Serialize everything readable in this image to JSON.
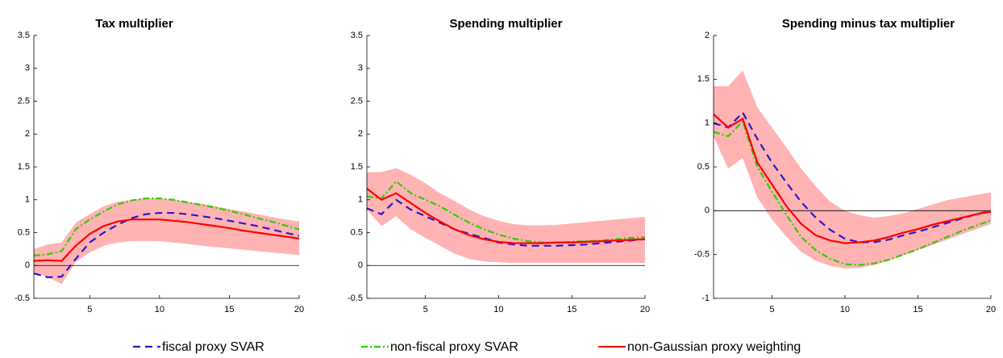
{
  "chart_data": [
    {
      "type": "line",
      "title": "Tax multiplier",
      "x": [
        1,
        2,
        3,
        4,
        5,
        6,
        7,
        8,
        9,
        10,
        11,
        12,
        13,
        14,
        15,
        16,
        17,
        18,
        19,
        20
      ],
      "xlim": [
        1,
        20
      ],
      "xticks": [
        5,
        10,
        15,
        20
      ],
      "ylim": [
        -0.5,
        3.5
      ],
      "yticks": [
        -0.5,
        0,
        0.5,
        1,
        1.5,
        2,
        2.5,
        3,
        3.5
      ],
      "reference_line": 0,
      "band": {
        "color": "#ffb3b3",
        "lower": [
          -0.1,
          -0.18,
          -0.28,
          0.05,
          0.2,
          0.3,
          0.35,
          0.37,
          0.37,
          0.37,
          0.35,
          0.33,
          0.3,
          0.28,
          0.26,
          0.24,
          0.22,
          0.2,
          0.18,
          0.16
        ],
        "upper": [
          0.25,
          0.32,
          0.35,
          0.65,
          0.78,
          0.9,
          0.97,
          1.0,
          1.02,
          1.02,
          1.0,
          0.97,
          0.94,
          0.9,
          0.86,
          0.82,
          0.78,
          0.74,
          0.7,
          0.67
        ]
      },
      "series": [
        {
          "name": "fiscal proxy SVAR",
          "color": "#2b19c8",
          "dash": "dashed",
          "values": [
            -0.12,
            -0.18,
            -0.17,
            0.1,
            0.35,
            0.5,
            0.62,
            0.72,
            0.78,
            0.8,
            0.8,
            0.78,
            0.75,
            0.72,
            0.68,
            0.64,
            0.6,
            0.55,
            0.5,
            0.45
          ]
        },
        {
          "name": "non-fiscal proxy SVAR",
          "color": "#33cc00",
          "dash": "dashdot",
          "values": [
            0.15,
            0.17,
            0.22,
            0.55,
            0.7,
            0.82,
            0.93,
            0.99,
            1.02,
            1.02,
            1.0,
            0.96,
            0.92,
            0.88,
            0.83,
            0.78,
            0.72,
            0.67,
            0.61,
            0.55
          ]
        },
        {
          "name": "non-Gaussian proxy weighting",
          "color": "#ff0000",
          "dash": "solid",
          "values": [
            0.07,
            0.08,
            0.07,
            0.3,
            0.48,
            0.6,
            0.67,
            0.7,
            0.7,
            0.7,
            0.68,
            0.66,
            0.63,
            0.6,
            0.57,
            0.53,
            0.5,
            0.47,
            0.44,
            0.41
          ]
        }
      ]
    },
    {
      "type": "line",
      "title": "Spending multiplier",
      "x": [
        1,
        2,
        3,
        4,
        5,
        6,
        7,
        8,
        9,
        10,
        11,
        12,
        13,
        14,
        15,
        16,
        17,
        18,
        19,
        20
      ],
      "xlim": [
        1,
        20
      ],
      "xticks": [
        5,
        10,
        15,
        20
      ],
      "ylim": [
        -0.5,
        3.5
      ],
      "yticks": [
        -0.5,
        0,
        0.5,
        1,
        1.5,
        2,
        2.5,
        3,
        3.5
      ],
      "reference_line": 0,
      "band": {
        "color": "#ffb3b3",
        "lower": [
          0.85,
          0.6,
          0.75,
          0.55,
          0.42,
          0.3,
          0.18,
          0.1,
          0.06,
          0.05,
          0.04,
          0.04,
          0.04,
          0.04,
          0.04,
          0.04,
          0.04,
          0.04,
          0.04,
          0.04
        ],
        "upper": [
          1.42,
          1.42,
          1.48,
          1.38,
          1.25,
          1.1,
          0.98,
          0.85,
          0.75,
          0.68,
          0.63,
          0.61,
          0.61,
          0.62,
          0.64,
          0.66,
          0.68,
          0.7,
          0.72,
          0.74
        ]
      },
      "series": [
        {
          "name": "fiscal proxy SVAR",
          "color": "#2b19c8",
          "dash": "dashed",
          "values": [
            0.87,
            0.78,
            1.0,
            0.85,
            0.75,
            0.65,
            0.55,
            0.48,
            0.42,
            0.35,
            0.32,
            0.3,
            0.3,
            0.3,
            0.31,
            0.32,
            0.34,
            0.36,
            0.38,
            0.4
          ]
        },
        {
          "name": "non-fiscal proxy SVAR",
          "color": "#33cc00",
          "dash": "dashdot",
          "values": [
            1.05,
            1.02,
            1.28,
            1.1,
            1.0,
            0.9,
            0.77,
            0.65,
            0.55,
            0.47,
            0.41,
            0.37,
            0.35,
            0.35,
            0.36,
            0.37,
            0.38,
            0.4,
            0.42,
            0.43
          ]
        },
        {
          "name": "non-Gaussian proxy weighting",
          "color": "#ff0000",
          "dash": "solid",
          "values": [
            1.17,
            1.0,
            1.1,
            0.95,
            0.8,
            0.67,
            0.55,
            0.46,
            0.4,
            0.36,
            0.34,
            0.34,
            0.34,
            0.35,
            0.35,
            0.36,
            0.37,
            0.38,
            0.39,
            0.4
          ]
        }
      ]
    },
    {
      "type": "line",
      "title": "Spending minus tax multiplier",
      "x": [
        1,
        2,
        3,
        4,
        5,
        6,
        7,
        8,
        9,
        10,
        11,
        12,
        13,
        14,
        15,
        16,
        17,
        18,
        19,
        20
      ],
      "xlim": [
        1,
        20
      ],
      "xticks": [
        5,
        10,
        15,
        20
      ],
      "ylim": [
        -1,
        2
      ],
      "yticks": [
        -1,
        -0.5,
        0,
        0.5,
        1,
        1.5,
        2
      ],
      "reference_line": 0,
      "band": {
        "color": "#ffb3b3",
        "lower": [
          0.85,
          0.48,
          0.6,
          0.15,
          -0.1,
          -0.3,
          -0.47,
          -0.57,
          -0.63,
          -0.66,
          -0.65,
          -0.62,
          -0.57,
          -0.51,
          -0.45,
          -0.39,
          -0.33,
          -0.27,
          -0.21,
          -0.15
        ],
        "upper": [
          1.42,
          1.42,
          1.6,
          1.18,
          0.95,
          0.72,
          0.48,
          0.28,
          0.1,
          0.0,
          -0.05,
          -0.08,
          -0.06,
          -0.03,
          0.02,
          0.07,
          0.12,
          0.15,
          0.18,
          0.21
        ]
      },
      "series": [
        {
          "name": "fiscal proxy SVAR",
          "color": "#2b19c8",
          "dash": "dashed",
          "values": [
            1.0,
            0.95,
            1.12,
            0.82,
            0.55,
            0.32,
            0.1,
            -0.08,
            -0.22,
            -0.32,
            -0.36,
            -0.36,
            -0.33,
            -0.28,
            -0.24,
            -0.19,
            -0.14,
            -0.09,
            -0.04,
            0.0
          ]
        },
        {
          "name": "non-fiscal proxy SVAR",
          "color": "#33cc00",
          "dash": "dashdot",
          "values": [
            0.9,
            0.85,
            1.02,
            0.5,
            0.22,
            -0.05,
            -0.3,
            -0.45,
            -0.55,
            -0.61,
            -0.62,
            -0.6,
            -0.56,
            -0.5,
            -0.44,
            -0.37,
            -0.3,
            -0.23,
            -0.17,
            -0.11
          ]
        },
        {
          "name": "non-Gaussian proxy weighting",
          "color": "#ff0000",
          "dash": "solid",
          "values": [
            1.1,
            0.95,
            1.05,
            0.55,
            0.3,
            0.05,
            -0.15,
            -0.28,
            -0.34,
            -0.37,
            -0.36,
            -0.34,
            -0.3,
            -0.25,
            -0.21,
            -0.16,
            -0.12,
            -0.08,
            -0.04,
            -0.01
          ]
        }
      ]
    }
  ]
}
